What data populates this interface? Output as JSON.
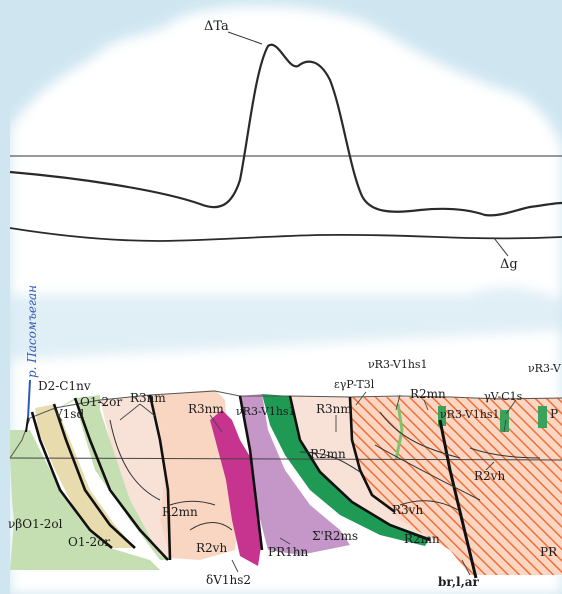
{
  "graph": {
    "magnetic_label": "ΔTa",
    "gravity_label": "Δg"
  },
  "section": {
    "profile_label": "р. Пасомъеган",
    "labels": {
      "d2c1nv": "D2-C1nv",
      "v1sd": "V1sd",
      "o12or_top": "O1-2or",
      "r3nm_a": "R3nm",
      "r3nm_b": "R3nm",
      "vr3v1hs1_a": "νR3-V1hs1",
      "r3nm_c": "R3nm",
      "eyp_t3l": "εγP-T3l",
      "vr3v1hs1_b": "νR3-V1hs1",
      "r2mn_a": "R2mn",
      "vr3v1hs1_c": "νR3-V1hs1",
      "yvc1s": "γV-C1s",
      "vr3v_cut": "νR3-V",
      "p_cut": "P",
      "r2mn_b": "R2mn",
      "r2mn_c": "R2mn",
      "r2vh_a": "R2vh",
      "r3vh": "R3vh",
      "r2vh_b": "R2vh",
      "r2mn_d": "R2mn",
      "pr1hn": "PR1hn",
      "sr2ms": "Σ'R2ms",
      "vbo12ol": "νβO1-2ol",
      "o12or_bottom": "O1-2or",
      "dv1hs2": "δV1hs2",
      "brlar": "br,l,ar",
      "pr_cut": "PR"
    }
  },
  "colors": {
    "background": "#cfe6f1",
    "cloud": "#ffffff",
    "green_unit": "#c5dfb2",
    "tan_unit": "#e8dcae",
    "pink_unit": "#f8e2d8",
    "peach_unit": "#f9d6c2",
    "magenta_unit": "#c6348f",
    "lilac_unit": "#c497c8",
    "dark_green_unit": "#1f9a55",
    "orange_hatch": "#ef6f3a"
  }
}
